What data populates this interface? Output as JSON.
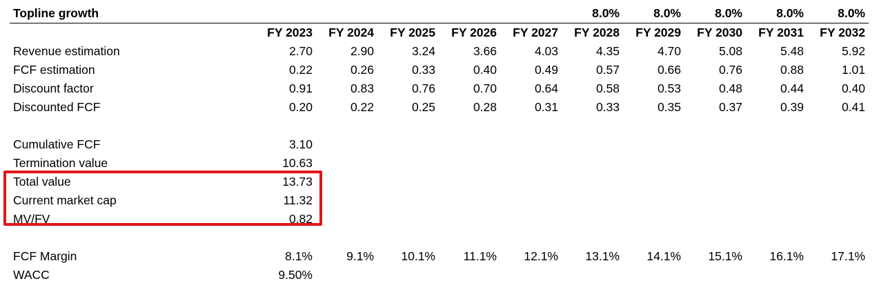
{
  "sheet": {
    "title": "Topline growth",
    "growth_rates": [
      "",
      "",
      "",
      "",
      "",
      "8.0%",
      "8.0%",
      "8.0%",
      "8.0%",
      "8.0%"
    ],
    "years": [
      "FY 2023",
      "FY 2024",
      "FY 2025",
      "FY 2026",
      "FY 2027",
      "FY 2028",
      "FY 2029",
      "FY 2030",
      "FY 2031",
      "FY 2032"
    ],
    "projection_rows": [
      {
        "label": "Revenue estimation",
        "values": [
          "2.70",
          "2.90",
          "3.24",
          "3.66",
          "4.03",
          "4.35",
          "4.70",
          "5.08",
          "5.48",
          "5.92"
        ]
      },
      {
        "label": "FCF estimation",
        "values": [
          "0.22",
          "0.26",
          "0.33",
          "0.40",
          "0.49",
          "0.57",
          "0.66",
          "0.76",
          "0.88",
          "1.01"
        ]
      },
      {
        "label": "Discount factor",
        "values": [
          "0.91",
          "0.83",
          "0.76",
          "0.70",
          "0.64",
          "0.58",
          "0.53",
          "0.48",
          "0.44",
          "0.40"
        ]
      },
      {
        "label": "Discounted FCF",
        "values": [
          "0.20",
          "0.22",
          "0.25",
          "0.28",
          "0.31",
          "0.33",
          "0.35",
          "0.37",
          "0.39",
          "0.41"
        ]
      }
    ],
    "summary_rows": [
      {
        "label": "Cumulative FCF",
        "value": "3.10"
      },
      {
        "label": "Termination value",
        "value": "10.63"
      },
      {
        "label": "Total value",
        "value": "13.73"
      },
      {
        "label": "Current market cap",
        "value": "11.32"
      },
      {
        "label": "MV/FV",
        "value": "0.82"
      }
    ],
    "fcf_margin": {
      "label": "FCF Margin",
      "values": [
        "8.1%",
        "9.1%",
        "10.1%",
        "11.1%",
        "12.1%",
        "13.1%",
        "14.1%",
        "15.1%",
        "16.1%",
        "17.1%"
      ]
    },
    "wacc": {
      "label": "WACC",
      "value": "9.50%"
    },
    "highlight_color": "#e0161b"
  }
}
